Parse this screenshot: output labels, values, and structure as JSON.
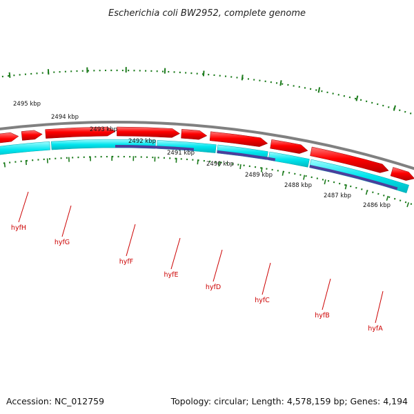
{
  "title": "Escherichia coli BW2952, complete genome",
  "kbp_ticks": [
    "2495 kbp",
    "2494 kbp",
    "2493 kbp",
    "2492 kbp",
    "2491 kbp",
    "2490 kbp",
    "2489 kbp",
    "2488 kbp",
    "2487 kbp",
    "2486 kbp"
  ],
  "genes": [
    "hyfH",
    "hyfG",
    "hyfF",
    "hyfE",
    "hyfD",
    "hyfC",
    "hyfB",
    "hyfA"
  ],
  "footer": {
    "accession": "Accession: NC_012759",
    "summary": "Topology: circular; Length: 4,578,159 bp; Genes: 4,194"
  },
  "colors": {
    "backbone": "#808080",
    "gene": "#ff0000",
    "cds": "#00e5ee",
    "feature": "#4b3f9c",
    "tick": "#1a7a1a",
    "other": "#c8b878",
    "label": "#cc0000"
  }
}
